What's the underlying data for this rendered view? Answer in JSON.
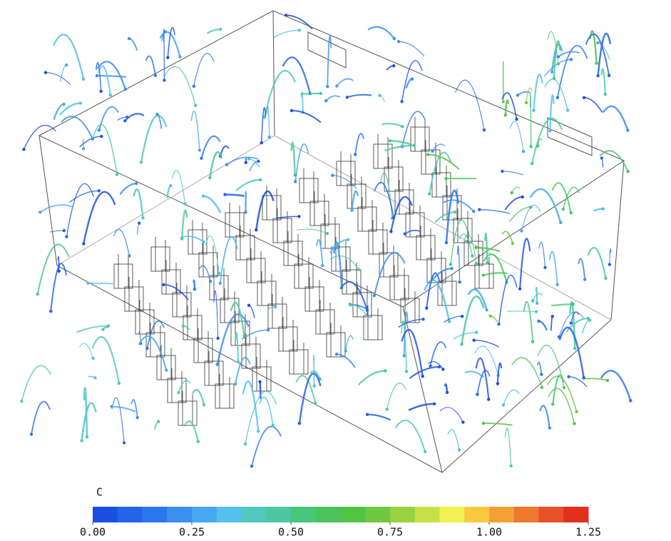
{
  "colorbar": {
    "title": "C",
    "lim": [
      0,
      1.25
    ],
    "ticks": [
      {
        "value": 0,
        "label": "0.00"
      },
      {
        "value": 0.25,
        "label": "0.25"
      },
      {
        "value": 0.5,
        "label": "0.50"
      },
      {
        "value": 0.75,
        "label": "0.75"
      },
      {
        "value": 1,
        "label": "1.00"
      },
      {
        "value": 1.25,
        "label": "1.25"
      }
    ],
    "colors": [
      "#1a4fe6",
      "#2263ea",
      "#2b78ec",
      "#3a8ff0",
      "#47a8f0",
      "#55c0ee",
      "#4fc8c0",
      "#4cc8a0",
      "#48c67a",
      "#4ac45a",
      "#52c445",
      "#6ec840",
      "#98d240",
      "#c8e048",
      "#f2f250",
      "#f8c840",
      "#f4a035",
      "#ee7830",
      "#e85028",
      "#e03020"
    ]
  }
}
